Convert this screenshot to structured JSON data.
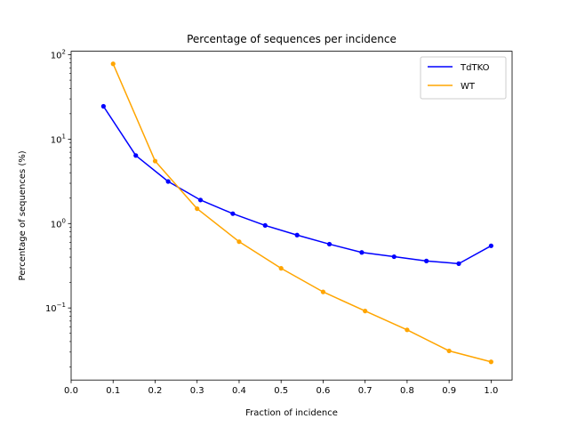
{
  "chart_data": {
    "type": "line",
    "title": "Percentage of sequences per incidence",
    "xlabel": "Fraction of incidence",
    "ylabel": "Percentage of sequences (%)",
    "xlim": [
      0.0,
      1.05
    ],
    "ylim": [
      0.014,
      110
    ],
    "yscale": "log",
    "grid": false,
    "legend_position": "top-right",
    "x_ticks": [
      "0.0",
      "0.1",
      "0.2",
      "0.3",
      "0.4",
      "0.5",
      "0.6",
      "0.7",
      "0.8",
      "0.9",
      "1.0"
    ],
    "y_ticks": [
      {
        "base": "10",
        "exp": "2",
        "value": 100
      },
      {
        "base": "10",
        "exp": "1",
        "value": 10
      },
      {
        "base": "10",
        "exp": "0",
        "value": 1
      },
      {
        "base": "10",
        "exp": "−1",
        "value": 0.1
      }
    ],
    "series": [
      {
        "name": "TdTKO",
        "color": "#0000ff",
        "x": [
          0.077,
          0.154,
          0.231,
          0.308,
          0.385,
          0.462,
          0.538,
          0.615,
          0.692,
          0.769,
          0.846,
          0.923,
          1.0
        ],
        "y": [
          24.5,
          6.4,
          3.15,
          1.9,
          1.31,
          0.95,
          0.73,
          0.57,
          0.455,
          0.405,
          0.36,
          0.335,
          0.545
        ]
      },
      {
        "name": "WT",
        "color": "#ffa500",
        "x": [
          0.1,
          0.2,
          0.3,
          0.4,
          0.5,
          0.6,
          0.7,
          0.8,
          0.9,
          1.0
        ],
        "y": [
          78,
          5.5,
          1.5,
          0.61,
          0.295,
          0.155,
          0.092,
          0.055,
          0.031,
          0.023
        ]
      }
    ]
  }
}
